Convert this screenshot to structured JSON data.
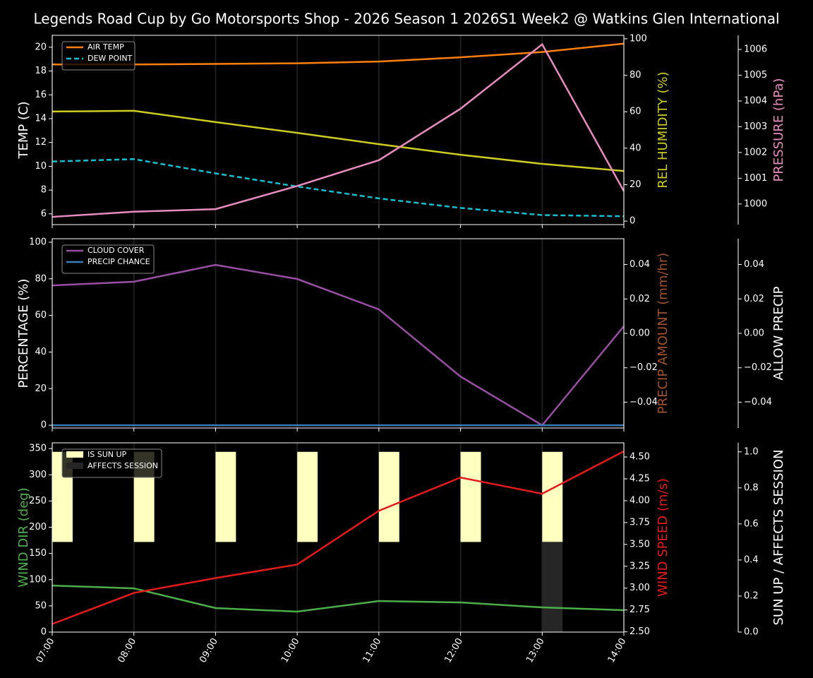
{
  "title": "Legends Road Cup by Go Motorsports Shop - 2026 Season 1 2026S1 Week2 @ Watkins Glen International",
  "chart_data": [
    {
      "type": "line",
      "legend": "upper left",
      "grid": true,
      "ylabel": "TEMP (C)",
      "ylabel_color": "#ffffff",
      "ylim": [
        5.1,
        21.0
      ],
      "yticks": [
        6,
        8,
        10,
        12,
        14,
        16,
        18,
        20
      ],
      "y2label": "REL HUMIDITY (%)",
      "y2label_color": "#cccc22",
      "y2lim": [
        -1.9,
        101.9
      ],
      "y2ticks": [
        0,
        20,
        40,
        60,
        80,
        100
      ],
      "y3label": "PRESSURE (hPa)",
      "y3label_color": "#e88cc0",
      "y3lim": [
        999.2,
        1006.55
      ],
      "y3ticks": [
        1000,
        1001,
        1002,
        1003,
        1004,
        1005,
        1006
      ],
      "series": [
        {
          "name": "AIR TEMP",
          "color": "#ff7f0e",
          "axis": "y",
          "values": [
            18.55,
            18.55,
            18.6,
            18.65,
            18.8,
            19.15,
            19.6,
            20.3
          ]
        },
        {
          "name": "DEW POINT",
          "color": "#17becf",
          "axis": "y",
          "linestyle": "dashed",
          "values": [
            10.4,
            10.6,
            9.4,
            8.3,
            7.3,
            6.5,
            5.9,
            5.8
          ]
        },
        {
          "color": "#cccc22",
          "axis": "y2",
          "values": [
            60.1,
            60.5,
            54.3,
            48.4,
            42.2,
            36.4,
            31.4,
            27.5
          ]
        },
        {
          "color": "#e88cc0",
          "axis": "y3",
          "values": [
            999.5,
            999.7,
            999.8,
            1000.7,
            1001.7,
            1003.7,
            1006.2,
            1000.5
          ]
        }
      ]
    },
    {
      "type": "line",
      "legend": "upper left",
      "grid": true,
      "ylabel": "PERCENTAGE (%)",
      "ylabel_color": "#ffffff",
      "ylim": [
        -1.5,
        101.9
      ],
      "yticks": [
        0,
        20,
        40,
        60,
        80,
        100
      ],
      "y2label": "PRECIP AMOUNT (mm/hr)",
      "y2label_color": "#a0522d",
      "y2lim": [
        -0.055,
        0.055
      ],
      "y2ticks": [
        {
          "value": -0.04,
          "label": "−0.04"
        },
        {
          "value": -0.02,
          "label": "−0.02"
        },
        {
          "value": 0,
          "label": "0.00"
        },
        0.02,
        0.04
      ],
      "y3label": "ALLOW PRECIP",
      "y3label_color": "#ffffff",
      "y3lim": [
        -0.055,
        0.055
      ],
      "y3ticks": [
        {
          "value": -0.04,
          "label": "−0.04"
        },
        {
          "value": -0.02,
          "label": "−0.02"
        },
        {
          "value": 0,
          "label": "0.00"
        },
        0.02,
        0.04
      ],
      "series": [
        {
          "name": "CLOUD COVER",
          "color": "#984ea3",
          "axis": "y",
          "values": [
            76.4,
            78.4,
            87.6,
            79.9,
            63.3,
            26.6,
            0,
            54.1
          ]
        },
        {
          "name": "PRECIP CHANCE",
          "color": "#377eb8",
          "axis": "y",
          "values": [
            0,
            0,
            0,
            0,
            0,
            0,
            0,
            0
          ]
        }
      ]
    },
    {
      "type": "line",
      "legend": "upper left",
      "grid": true,
      "categories": [
        "07:00",
        "08:00",
        "09:00",
        "10:00",
        "11:00",
        "12:00",
        "13:00",
        "14:00"
      ],
      "ylabel": "WIND DIR (deg)",
      "ylabel_color": "#4daf4a",
      "ylim": [
        0,
        361
      ],
      "yticks": [
        0,
        50,
        100,
        150,
        200,
        250,
        300,
        350
      ],
      "y2label": "WIND SPEED (m/s)",
      "y2label_color": "#e41a1c",
      "y2lim": [
        2.497,
        4.662
      ],
      "y2ticks": [
        {
          "value": 2.5,
          "label": "2.50"
        },
        2.75,
        {
          "value": 3,
          "label": "3.00"
        },
        3.25,
        {
          "value": 3.5,
          "label": "3.50"
        },
        3.75,
        {
          "value": 4,
          "label": "4.00"
        },
        4.25,
        {
          "value": 4.5,
          "label": "4.50"
        }
      ],
      "y3label": "SUN UP / AFFECTS SESSION",
      "y3label_color": "#ffffff",
      "y3lim": [
        0,
        1.05
      ],
      "y3ticks": [
        {
          "value": 0,
          "label": "0.0"
        },
        0.2,
        0.4,
        0.6,
        0.8,
        {
          "value": 1,
          "label": "1.0"
        }
      ],
      "series": [
        {
          "name": "IS SUN UP",
          "type": "bar",
          "color": "#ffffc0",
          "axis": "y3",
          "bar_bottom": 0.5,
          "bar_width": 0.25,
          "values": [
            1,
            1,
            1,
            1,
            1,
            1,
            1,
            0
          ]
        },
        {
          "name": "AFFECTS SESSION",
          "type": "bar",
          "color": "#262626",
          "axis": "y3",
          "bar_width": 0.25,
          "values": [
            0,
            0,
            0,
            0,
            0,
            0,
            0.5,
            0
          ]
        },
        {
          "color": "#4daf4a",
          "axis": "y",
          "values": [
            88.8,
            83.4,
            45.8,
            39,
            59.2,
            56.5,
            47.1,
            41.7
          ]
        },
        {
          "color": "#e41a1c",
          "axis": "y2",
          "values": [
            2.59,
            2.945,
            3.115,
            3.27,
            3.885,
            4.265,
            4.08,
            4.565
          ]
        }
      ]
    }
  ]
}
